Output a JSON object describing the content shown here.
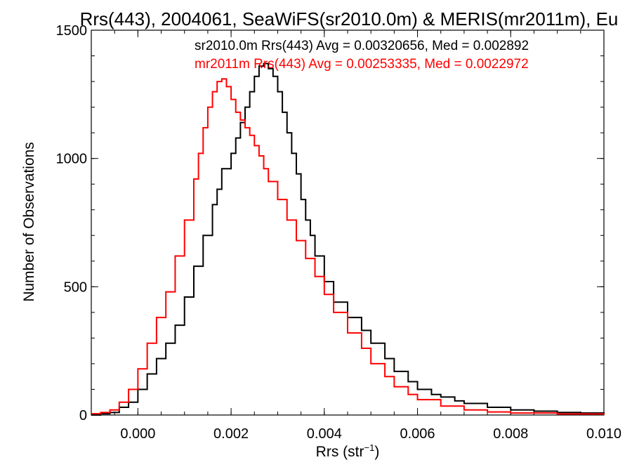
{
  "chart_data": {
    "type": "line",
    "title": "Rrs(443), 2004061, SeaWiFS(sr2010.0m) & MERIS(mr2011m), Eu",
    "xlabel_main": "Rrs (str",
    "xlabel_sup": "−1",
    "xlabel_close": ")",
    "ylabel": "Number of Observations",
    "xlim": [
      -0.001,
      0.01
    ],
    "ylim": [
      0,
      1500
    ],
    "xticks": [
      0.0,
      0.002,
      0.004,
      0.006,
      0.008,
      0.01
    ],
    "xtick_labels": [
      "0.000",
      "0.002",
      "0.004",
      "0.006",
      "0.008",
      "0.010"
    ],
    "yticks": [
      0,
      500,
      1000,
      1500
    ],
    "ytick_labels": [
      "0",
      "500",
      "1000",
      "1500"
    ],
    "series": [
      {
        "name": "sr2010.0m",
        "color": "#000000",
        "legend": "sr2010.0m Rrs(443) Avg = 0.00320656, Med = 0.002892",
        "x": [
          -0.001,
          -0.0008,
          -0.0006,
          -0.0004,
          -0.0002,
          0.0,
          0.0002,
          0.0004,
          0.0006,
          0.0008,
          0.001,
          0.0012,
          0.0014,
          0.0016,
          0.0017,
          0.0018,
          0.002,
          0.0021,
          0.0022,
          0.0023,
          0.0024,
          0.0025,
          0.0026,
          0.0027,
          0.0028,
          0.0029,
          0.003,
          0.0031,
          0.0032,
          0.0033,
          0.0034,
          0.0035,
          0.0036,
          0.0037,
          0.0038,
          0.004,
          0.0042,
          0.0045,
          0.0048,
          0.005,
          0.0053,
          0.0055,
          0.0058,
          0.006,
          0.0063,
          0.0065,
          0.0068,
          0.007,
          0.0075,
          0.008,
          0.0085,
          0.009,
          0.0095,
          0.01
        ],
        "y": [
          0,
          5,
          10,
          30,
          50,
          100,
          160,
          220,
          280,
          350,
          460,
          580,
          700,
          820,
          880,
          960,
          1020,
          1080,
          1140,
          1200,
          1260,
          1320,
          1360,
          1370,
          1350,
          1320,
          1260,
          1180,
          1100,
          1020,
          940,
          840,
          760,
          700,
          620,
          520,
          440,
          380,
          330,
          280,
          220,
          170,
          130,
          100,
          80,
          70,
          55,
          45,
          30,
          20,
          15,
          10,
          8,
          5
        ]
      },
      {
        "name": "mr2011m",
        "color": "#ff0000",
        "legend": "mr2011m Rrs(443) Avg = 0.00253335, Med = 0.0022972",
        "x": [
          -0.001,
          -0.0008,
          -0.0006,
          -0.0004,
          -0.0002,
          0.0,
          0.0002,
          0.0004,
          0.0006,
          0.0008,
          0.001,
          0.0012,
          0.0013,
          0.0014,
          0.0015,
          0.0016,
          0.0017,
          0.0018,
          0.0019,
          0.002,
          0.0021,
          0.0022,
          0.0023,
          0.0024,
          0.0025,
          0.0026,
          0.0027,
          0.0028,
          0.003,
          0.0032,
          0.0034,
          0.0036,
          0.0038,
          0.004,
          0.0042,
          0.0045,
          0.0048,
          0.005,
          0.0053,
          0.0055,
          0.0058,
          0.006,
          0.0065,
          0.007,
          0.0075,
          0.008,
          0.009,
          0.01
        ],
        "y": [
          5,
          10,
          20,
          50,
          100,
          180,
          280,
          380,
          480,
          620,
          760,
          920,
          1020,
          1120,
          1200,
          1260,
          1300,
          1310,
          1280,
          1230,
          1180,
          1150,
          1120,
          1090,
          1050,
          1010,
          960,
          910,
          840,
          760,
          680,
          610,
          540,
          470,
          400,
          320,
          260,
          200,
          150,
          110,
          80,
          60,
          35,
          20,
          12,
          8,
          4,
          2
        ]
      }
    ]
  }
}
